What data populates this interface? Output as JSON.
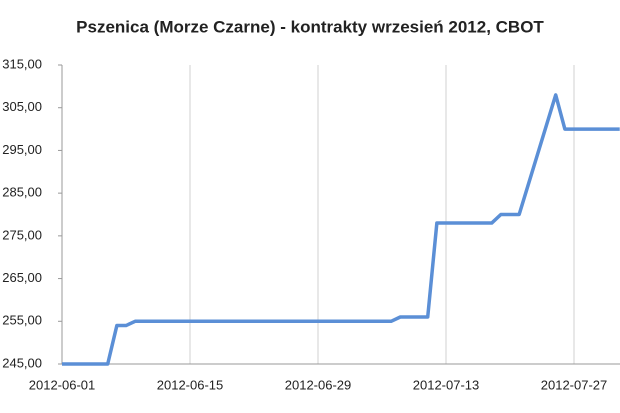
{
  "chart_data": {
    "type": "line",
    "title": "Pszenica (Morze Czarne) - kontrakty wrzesień 2012, CBOT",
    "x": [
      "2012-06-01",
      "2012-06-06",
      "2012-06-07",
      "2012-06-08",
      "2012-06-09",
      "2012-07-07",
      "2012-07-08",
      "2012-07-11",
      "2012-07-12",
      "2012-07-18",
      "2012-07-19",
      "2012-07-21",
      "2012-07-25",
      "2012-07-26",
      "2012-08-01"
    ],
    "series": [
      {
        "name": "Pszenica",
        "color": "#5b8fd6",
        "values": [
          245,
          245,
          254,
          254,
          255,
          255,
          256,
          256,
          278,
          278,
          280,
          280,
          308,
          300,
          300
        ]
      }
    ],
    "xlim": [
      "2012-06-01",
      "2012-08-01"
    ],
    "xticks": [
      "2012-06-01",
      "2012-06-15",
      "2012-06-29",
      "2012-07-13",
      "2012-07-27"
    ],
    "ylim": [
      245,
      315
    ],
    "yticks": [
      {
        "value": 245,
        "label": "245,00"
      },
      {
        "value": 255,
        "label": "255,00"
      },
      {
        "value": 265,
        "label": "265,00"
      },
      {
        "value": 275,
        "label": "275,00"
      },
      {
        "value": 285,
        "label": "285,00"
      },
      {
        "value": 295,
        "label": "295,00"
      },
      {
        "value": 305,
        "label": "305,00"
      },
      {
        "value": 315,
        "label": "315,00"
      }
    ],
    "grid": true
  }
}
